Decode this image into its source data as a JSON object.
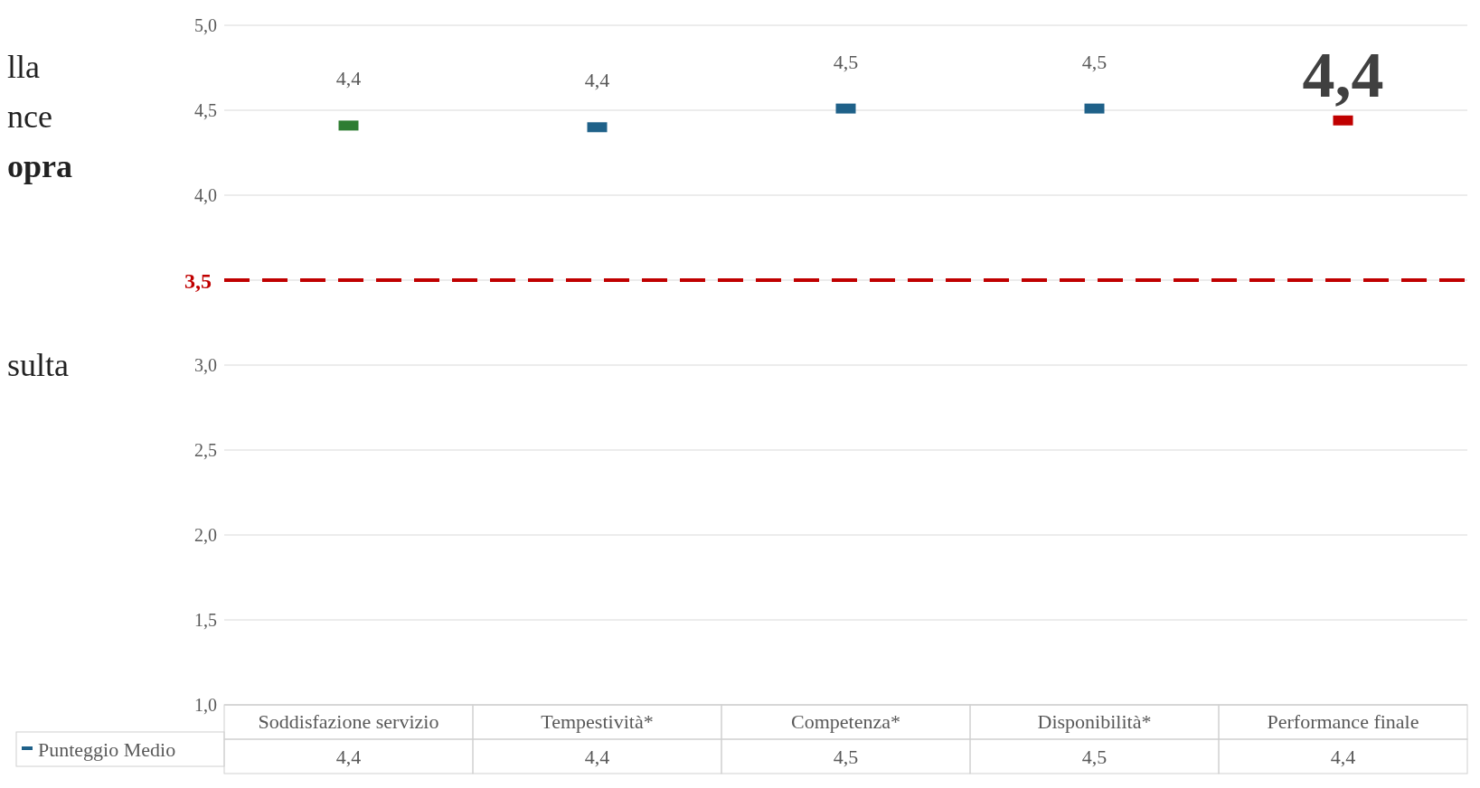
{
  "chart_data": {
    "type": "scatter",
    "marker": "square",
    "categories": [
      "Soddisfazione servizio",
      "Tempestività*",
      "Competenza*",
      "Disponibilità*",
      "Performance finale"
    ],
    "series": [
      {
        "name": "Punteggio Medio",
        "color": "#1f6189",
        "colors": [
          "#2e7d32",
          "#1f6189",
          "#1f6189",
          "#1f6189",
          "#c00000"
        ],
        "values": [
          4.41,
          4.4,
          4.51,
          4.51,
          4.44
        ],
        "value_labels": [
          "4,4",
          "4,4",
          "4,5",
          "4,5",
          "4,4"
        ]
      }
    ],
    "ylim": [
      1,
      5
    ],
    "yticks": [
      {
        "value": 1,
        "label": "1,0"
      },
      {
        "value": 1.5,
        "label": "1,5"
      },
      {
        "value": 2,
        "label": "2,0"
      },
      {
        "value": 2.5,
        "label": "2,5"
      },
      {
        "value": 3,
        "label": "3,0"
      },
      {
        "value": 3.5,
        "label": null
      },
      {
        "value": 4,
        "label": "4,0"
      },
      {
        "value": 4.5,
        "label": "4,5"
      },
      {
        "value": 5,
        "label": "5,0"
      }
    ],
    "grid": "y",
    "legend": "bottom",
    "ref_lines": [
      {
        "axis": "y",
        "value": 3.5,
        "label": "3,5",
        "color": "#c00000",
        "line_style": "dashed"
      }
    ],
    "annotations": [
      "lla",
      "nce",
      "opra",
      "sulta"
    ]
  }
}
